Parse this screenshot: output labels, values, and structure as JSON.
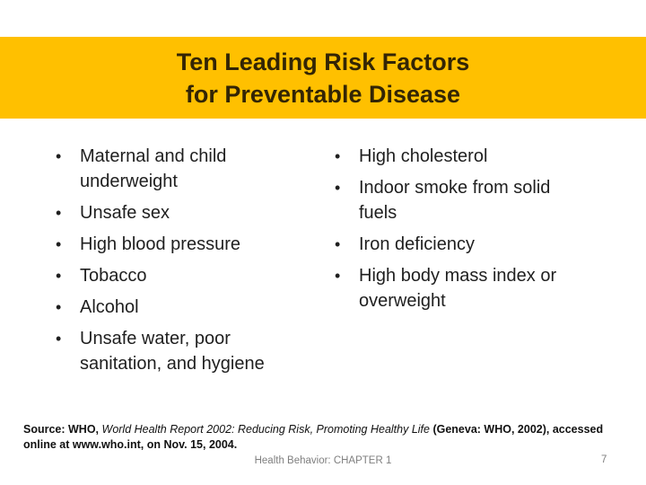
{
  "slide": {
    "title": {
      "line1": "Ten Leading Risk Factors",
      "line2": "for Preventable Disease"
    },
    "bullet_glyph": "•",
    "columns": {
      "left": [
        "Maternal and child underweight",
        "Unsafe sex",
        "High blood pressure",
        "Tobacco",
        "Alcohol",
        "Unsafe water, poor sanitation, and hygiene"
      ],
      "right": [
        "High cholesterol",
        "Indoor smoke from solid fuels",
        "Iron deficiency",
        "High body mass index or overweight"
      ]
    },
    "footer": {
      "source_prefix": "Source: WHO, ",
      "source_italic": "World Health Report 2002: Reducing Risk, Promoting Healthy Life",
      "source_suffix": " (Geneva: WHO, 2002), accessed online at www.who.int, on Nov. 15, 2004.",
      "chapter_label": "Health Behavior: CHAPTER 1",
      "page_number": "7"
    },
    "colors": {
      "banner_background": "#FFC000",
      "title_text": "#332505",
      "body_text": "#1F1F1F",
      "footer_gray": "#7F7F7F",
      "background": "#FFFFFF"
    }
  }
}
